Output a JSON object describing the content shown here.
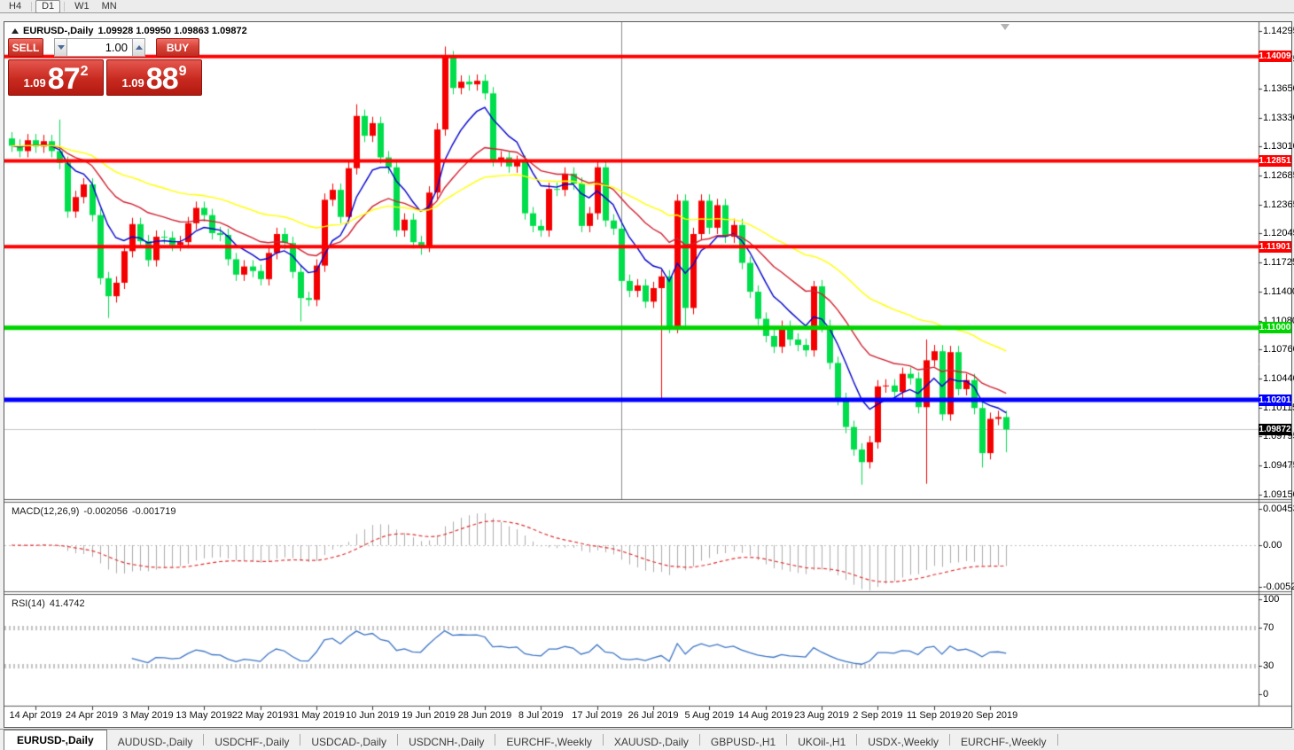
{
  "toolbar": {
    "periods": [
      "H4",
      "D1",
      "W1",
      "MN"
    ],
    "active_period": "D1"
  },
  "header": {
    "symbol": "EURUSD-,Daily",
    "ohlc": "1.09928 1.09950 1.09863 1.09872"
  },
  "trade_panel": {
    "sell_label": "SELL",
    "buy_label": "BUY",
    "volume": "1.00",
    "sell_price": {
      "prefix": "1.09",
      "big": "87",
      "pip": "2"
    },
    "buy_price": {
      "prefix": "1.09",
      "big": "88",
      "pip": "9"
    }
  },
  "indicators": {
    "macd": {
      "name": "MACD(12,26,9)",
      "value1": "-0.002056",
      "value2": "-0.001719"
    },
    "rsi": {
      "name": "RSI(14)",
      "value": "41.4742"
    }
  },
  "tabs": {
    "items": [
      "EURUSD-,Daily",
      "AUDUSD-,Daily",
      "USDCHF-,Daily",
      "USDCAD-,Daily",
      "USDCNH-,Daily",
      "EURCHF-,Weekly",
      "XAUUSD-,Daily",
      "GBPUSD-,H1",
      "UKOil-,H1",
      "USDX-,Weekly",
      "EURCHF-,Weekly"
    ],
    "active_index": 0
  },
  "chart_data": {
    "type": "candlestick",
    "symbol": "EURUSD-",
    "timeframe": "Daily",
    "title": "EURUSD-,Daily 1.09928 1.09950 1.09863 1.09872",
    "conventions": {
      "bull_color": "#F40000",
      "bear_color": "#00DE4B",
      "note": "red = up, green = down"
    },
    "price_axis": {
      "range": [
        1.091,
        1.1439
      ],
      "ticks": [
        "1.14295",
        "1.13975",
        "1.13650",
        "1.13330",
        "1.13010",
        "1.12685",
        "1.12365",
        "1.12045",
        "1.11725",
        "1.11400",
        "1.11080",
        "1.10760",
        "1.10440",
        "1.10115",
        "1.09795",
        "1.09475",
        "1.09150"
      ]
    },
    "levels": [
      {
        "price": 1.14009,
        "label": "1.14009",
        "color": "#FF0000",
        "line_width": 4
      },
      {
        "price": 1.12851,
        "label": "1.12851",
        "color": "#FF0000",
        "line_width": 4
      },
      {
        "price": 1.11901,
        "label": "1.11901",
        "color": "#FF0000",
        "line_width": 4
      },
      {
        "price": 1.11,
        "label": "1.11000",
        "color": "#00D500",
        "line_width": 5
      },
      {
        "price": 1.10201,
        "label": "1.10201",
        "color": "#0000FF",
        "line_width": 5
      },
      {
        "price": 1.09872,
        "label": "1.09872",
        "color": "#000000",
        "line_width": 0,
        "current_price": true
      }
    ],
    "x_axis": {
      "labels": [
        "14 Apr 2019",
        "24 Apr 2019",
        "3 May 2019",
        "13 May 2019",
        "22 May 2019",
        "31 May 2019",
        "10 Jun 2019",
        "19 Jun 2019",
        "28 Jun 2019",
        "8 Jul 2019",
        "17 Jul 2019",
        "26 Jul 2019",
        "5 Aug 2019",
        "14 Aug 2019",
        "23 Aug 2019",
        "2 Sep 2019",
        "11 Sep 2019",
        "20 Sep 2019"
      ],
      "first_label_bar": 3,
      "bars_per_label": 7
    },
    "candles": {
      "first_open": 1.131,
      "default_wick": 0.0007,
      "closes": [
        1.1302,
        1.1296,
        1.1308,
        1.1301,
        1.1307,
        1.1296,
        1.1283,
        1.1229,
        1.1245,
        1.1259,
        1.1225,
        1.1155,
        1.1135,
        1.115,
        1.1185,
        1.1215,
        1.1196,
        1.1175,
        1.1201,
        1.12,
        1.1192,
        1.1195,
        1.1216,
        1.1233,
        1.1225,
        1.1205,
        1.1203,
        1.1176,
        1.1159,
        1.1168,
        1.1163,
        1.1154,
        1.1183,
        1.1204,
        1.1194,
        1.1162,
        1.1133,
        1.1131,
        1.1169,
        1.1242,
        1.1253,
        1.1223,
        1.1277,
        1.1335,
        1.1313,
        1.1327,
        1.1289,
        1.1278,
        1.1208,
        1.122,
        1.1195,
        1.1191,
        1.125,
        1.132,
        1.14,
        1.1366,
        1.1373,
        1.137,
        1.1374,
        1.136,
        1.1286,
        1.1289,
        1.1279,
        1.1284,
        1.1227,
        1.1213,
        1.1208,
        1.1254,
        1.1253,
        1.1271,
        1.126,
        1.1213,
        1.1227,
        1.1278,
        1.1219,
        1.121,
        1.1152,
        1.1141,
        1.1147,
        1.1129,
        1.1144,
        1.1157,
        1.1101,
        1.1241,
        1.1122,
        1.1204,
        1.1241,
        1.1211,
        1.1236,
        1.1201,
        1.1214,
        1.1172,
        1.114,
        1.111,
        1.1091,
        1.1079,
        1.1101,
        1.1087,
        1.1081,
        1.1075,
        1.1146,
        1.1102,
        1.1061,
        1.1021,
        1.099,
        1.0965,
        1.0951,
        1.0973,
        1.1035,
        1.1036,
        1.1029,
        1.1049,
        1.1044,
        1.1012,
        1.1064,
        1.1074,
        1.1004,
        1.1073,
        1.1032,
        1.1042,
        1.1011,
        1.0961,
        1.0999,
        1.1001,
        1.09872
      ],
      "overrides": {
        "6": {
          "h": 1.1331
        },
        "12": {
          "l": 1.1111
        },
        "36": {
          "l": 1.1107
        },
        "43": {
          "h": 1.1348
        },
        "51": {
          "l": 1.1181
        },
        "54": {
          "h": 1.1412
        },
        "81": {
          "l": 1.1021
        },
        "84": {
          "l": 1.11
        },
        "100": {
          "h": 1.1152
        },
        "106": {
          "l": 1.0926
        },
        "114": {
          "l": 1.0927,
          "h": 1.1087
        },
        "121": {
          "l": 1.0945
        },
        "124": {
          "l": 1.0962
        }
      }
    },
    "moving_averages": [
      {
        "period": 8,
        "color": "#0000CC"
      },
      {
        "period": 20,
        "color": "#D02030"
      },
      {
        "period": 45,
        "color": "#FFFF00"
      }
    ],
    "vertical_line_bar": 76,
    "macd": {
      "params": [
        12,
        26,
        9
      ],
      "hist_color": "#ADADAD",
      "signal_color": "#E03030",
      "axis_ticks": [
        {
          "v": 0.004536,
          "label": "0.004536"
        },
        {
          "v": 0,
          "label": "0.00"
        },
        {
          "v": -0.005205,
          "label": "-0.005205"
        }
      ],
      "current_values": [
        -0.002056,
        -0.001719
      ]
    },
    "rsi": {
      "period": 14,
      "color": "#3C74C4",
      "axis_ticks": [
        {
          "v": 100,
          "label": "100"
        },
        {
          "v": 70,
          "label": "70"
        },
        {
          "v": 30,
          "label": "30"
        },
        {
          "v": 0,
          "label": "0"
        }
      ],
      "guide_levels": [
        30,
        70
      ],
      "current_value": 41.4742
    }
  }
}
